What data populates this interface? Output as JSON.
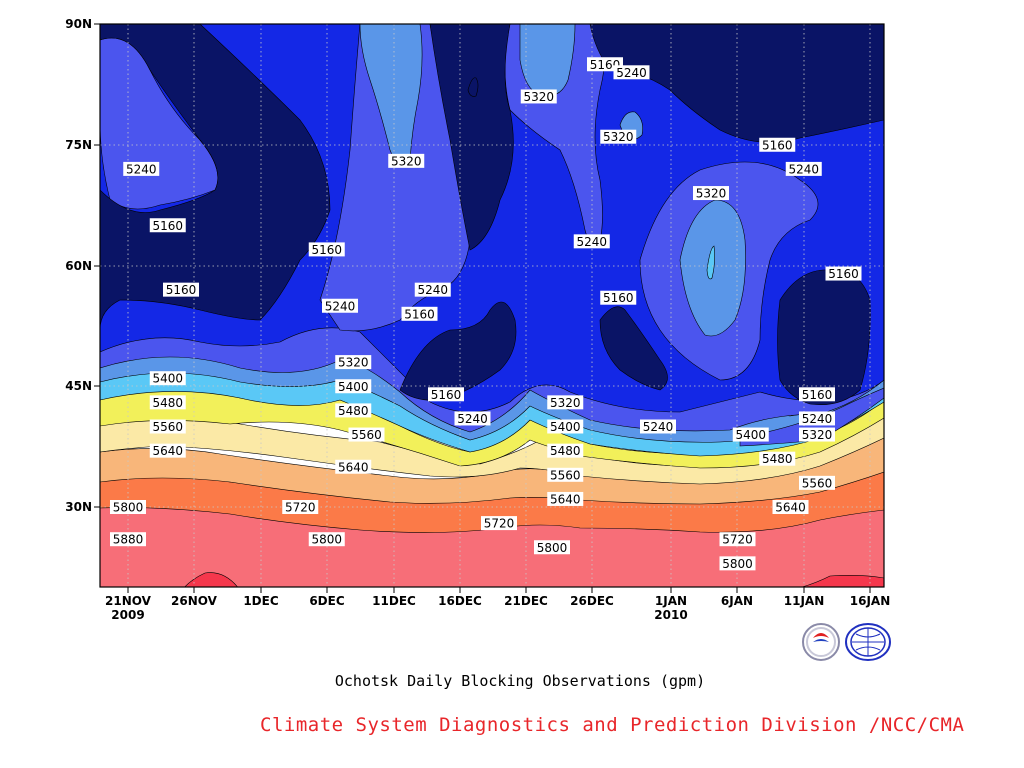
{
  "chart_data": {
    "type": "contour",
    "caption": "Ochotsk Daily Blocking Observations (gpm)",
    "credit": "Climate System Diagnostics and Prediction Division /NCC/CMA",
    "y_ticks": [
      "90N",
      "75N",
      "60N",
      "45N",
      "30N"
    ],
    "x_ticks": [
      {
        "day": "21NOV",
        "year": "2009"
      },
      {
        "day": "26NOV",
        "year": ""
      },
      {
        "day": "1DEC",
        "year": ""
      },
      {
        "day": "6DEC",
        "year": ""
      },
      {
        "day": "11DEC",
        "year": ""
      },
      {
        "day": "16DEC",
        "year": ""
      },
      {
        "day": "21DEC",
        "year": ""
      },
      {
        "day": "26DEC",
        "year": ""
      },
      {
        "day": "1JAN",
        "year": "2010"
      },
      {
        "day": "6JAN",
        "year": ""
      },
      {
        "day": "11JAN",
        "year": ""
      },
      {
        "day": "16JAN",
        "year": ""
      }
    ],
    "levels": [
      5160,
      5240,
      5320,
      5400,
      5480,
      5560,
      5640,
      5720,
      5800,
      5880
    ],
    "grid": true,
    "colors": {
      "below_5160": "#0a1466",
      "5160_5240": "#1428e6",
      "5240_5320": "#4b55ee",
      "5320_5400": "#5a96e8",
      "5400_5480": "#5ac8f6",
      "5480_5560": "#f2f05a",
      "5560_5640": "#fbe9a6",
      "5640_5720": "#f8b67a",
      "5720_5800": "#fb7a48",
      "5800_5880": "#f76e78",
      "above_5880": "#f5374c"
    },
    "contour_labels": [
      {
        "value": "5240",
        "x": "22NOV",
        "y": "72N"
      },
      {
        "value": "5160",
        "x": "24NOV",
        "y": "65N"
      },
      {
        "value": "5160",
        "x": "25NOV",
        "y": "57N"
      },
      {
        "value": "5400",
        "x": "24NOV",
        "y": "46N"
      },
      {
        "value": "5480",
        "x": "24NOV",
        "y": "43N"
      },
      {
        "value": "5560",
        "x": "24NOV",
        "y": "40N"
      },
      {
        "value": "5640",
        "x": "24NOV",
        "y": "37N"
      },
      {
        "value": "5800",
        "x": "21NOV",
        "y": "30N"
      },
      {
        "value": "5880",
        "x": "21NOV",
        "y": "26N"
      },
      {
        "value": "5720",
        "x": "4DEC",
        "y": "30N"
      },
      {
        "value": "5800",
        "x": "6DEC",
        "y": "26N"
      },
      {
        "value": "5160",
        "x": "6DEC",
        "y": "62N"
      },
      {
        "value": "5240",
        "x": "7DEC",
        "y": "55N"
      },
      {
        "value": "5320",
        "x": "8DEC",
        "y": "48N"
      },
      {
        "value": "5400",
        "x": "8DEC",
        "y": "45N"
      },
      {
        "value": "5480",
        "x": "8DEC",
        "y": "42N"
      },
      {
        "value": "5560",
        "x": "9DEC",
        "y": "39N"
      },
      {
        "value": "5640",
        "x": "8DEC",
        "y": "35N"
      },
      {
        "value": "5320",
        "x": "12DEC",
        "y": "73N"
      },
      {
        "value": "5240",
        "x": "14DEC",
        "y": "57N"
      },
      {
        "value": "5160",
        "x": "13DEC",
        "y": "54N"
      },
      {
        "value": "5160",
        "x": "15DEC",
        "y": "44N"
      },
      {
        "value": "5240",
        "x": "17DEC",
        "y": "41N"
      },
      {
        "value": "5720",
        "x": "19DEC",
        "y": "28N"
      },
      {
        "value": "5320",
        "x": "22DEC",
        "y": "81N"
      },
      {
        "value": "5320",
        "x": "24DEC",
        "y": "43N"
      },
      {
        "value": "5400",
        "x": "24DEC",
        "y": "40N"
      },
      {
        "value": "5480",
        "x": "24DEC",
        "y": "37N"
      },
      {
        "value": "5560",
        "x": "24DEC",
        "y": "34N"
      },
      {
        "value": "5640",
        "x": "24DEC",
        "y": "31N"
      },
      {
        "value": "5800",
        "x": "23DEC",
        "y": "25N"
      },
      {
        "value": "5160",
        "x": "27DEC",
        "y": "85N"
      },
      {
        "value": "5240",
        "x": "29DEC",
        "y": "84N"
      },
      {
        "value": "5320",
        "x": "28DEC",
        "y": "76N"
      },
      {
        "value": "5240",
        "x": "26DEC",
        "y": "63N"
      },
      {
        "value": "5160",
        "x": "28DEC",
        "y": "56N"
      },
      {
        "value": "5240",
        "x": "31DEC",
        "y": "40N"
      },
      {
        "value": "5320",
        "x": "4JAN",
        "y": "69N"
      },
      {
        "value": "5160",
        "x": "9JAN",
        "y": "75N"
      },
      {
        "value": "5240",
        "x": "11JAN",
        "y": "72N"
      },
      {
        "value": "5160",
        "x": "14JAN",
        "y": "59N"
      },
      {
        "value": "5400",
        "x": "7JAN",
        "y": "39N"
      },
      {
        "value": "5480",
        "x": "9JAN",
        "y": "36N"
      },
      {
        "value": "5560",
        "x": "12JAN",
        "y": "33N"
      },
      {
        "value": "5640",
        "x": "10JAN",
        "y": "30N"
      },
      {
        "value": "5720",
        "x": "6JAN",
        "y": "26N"
      },
      {
        "value": "5800",
        "x": "6JAN",
        "y": "23N"
      },
      {
        "value": "5160",
        "x": "12JAN",
        "y": "44N"
      },
      {
        "value": "5240",
        "x": "12JAN",
        "y": "41N"
      },
      {
        "value": "5320",
        "x": "12JAN",
        "y": "39N"
      }
    ]
  }
}
